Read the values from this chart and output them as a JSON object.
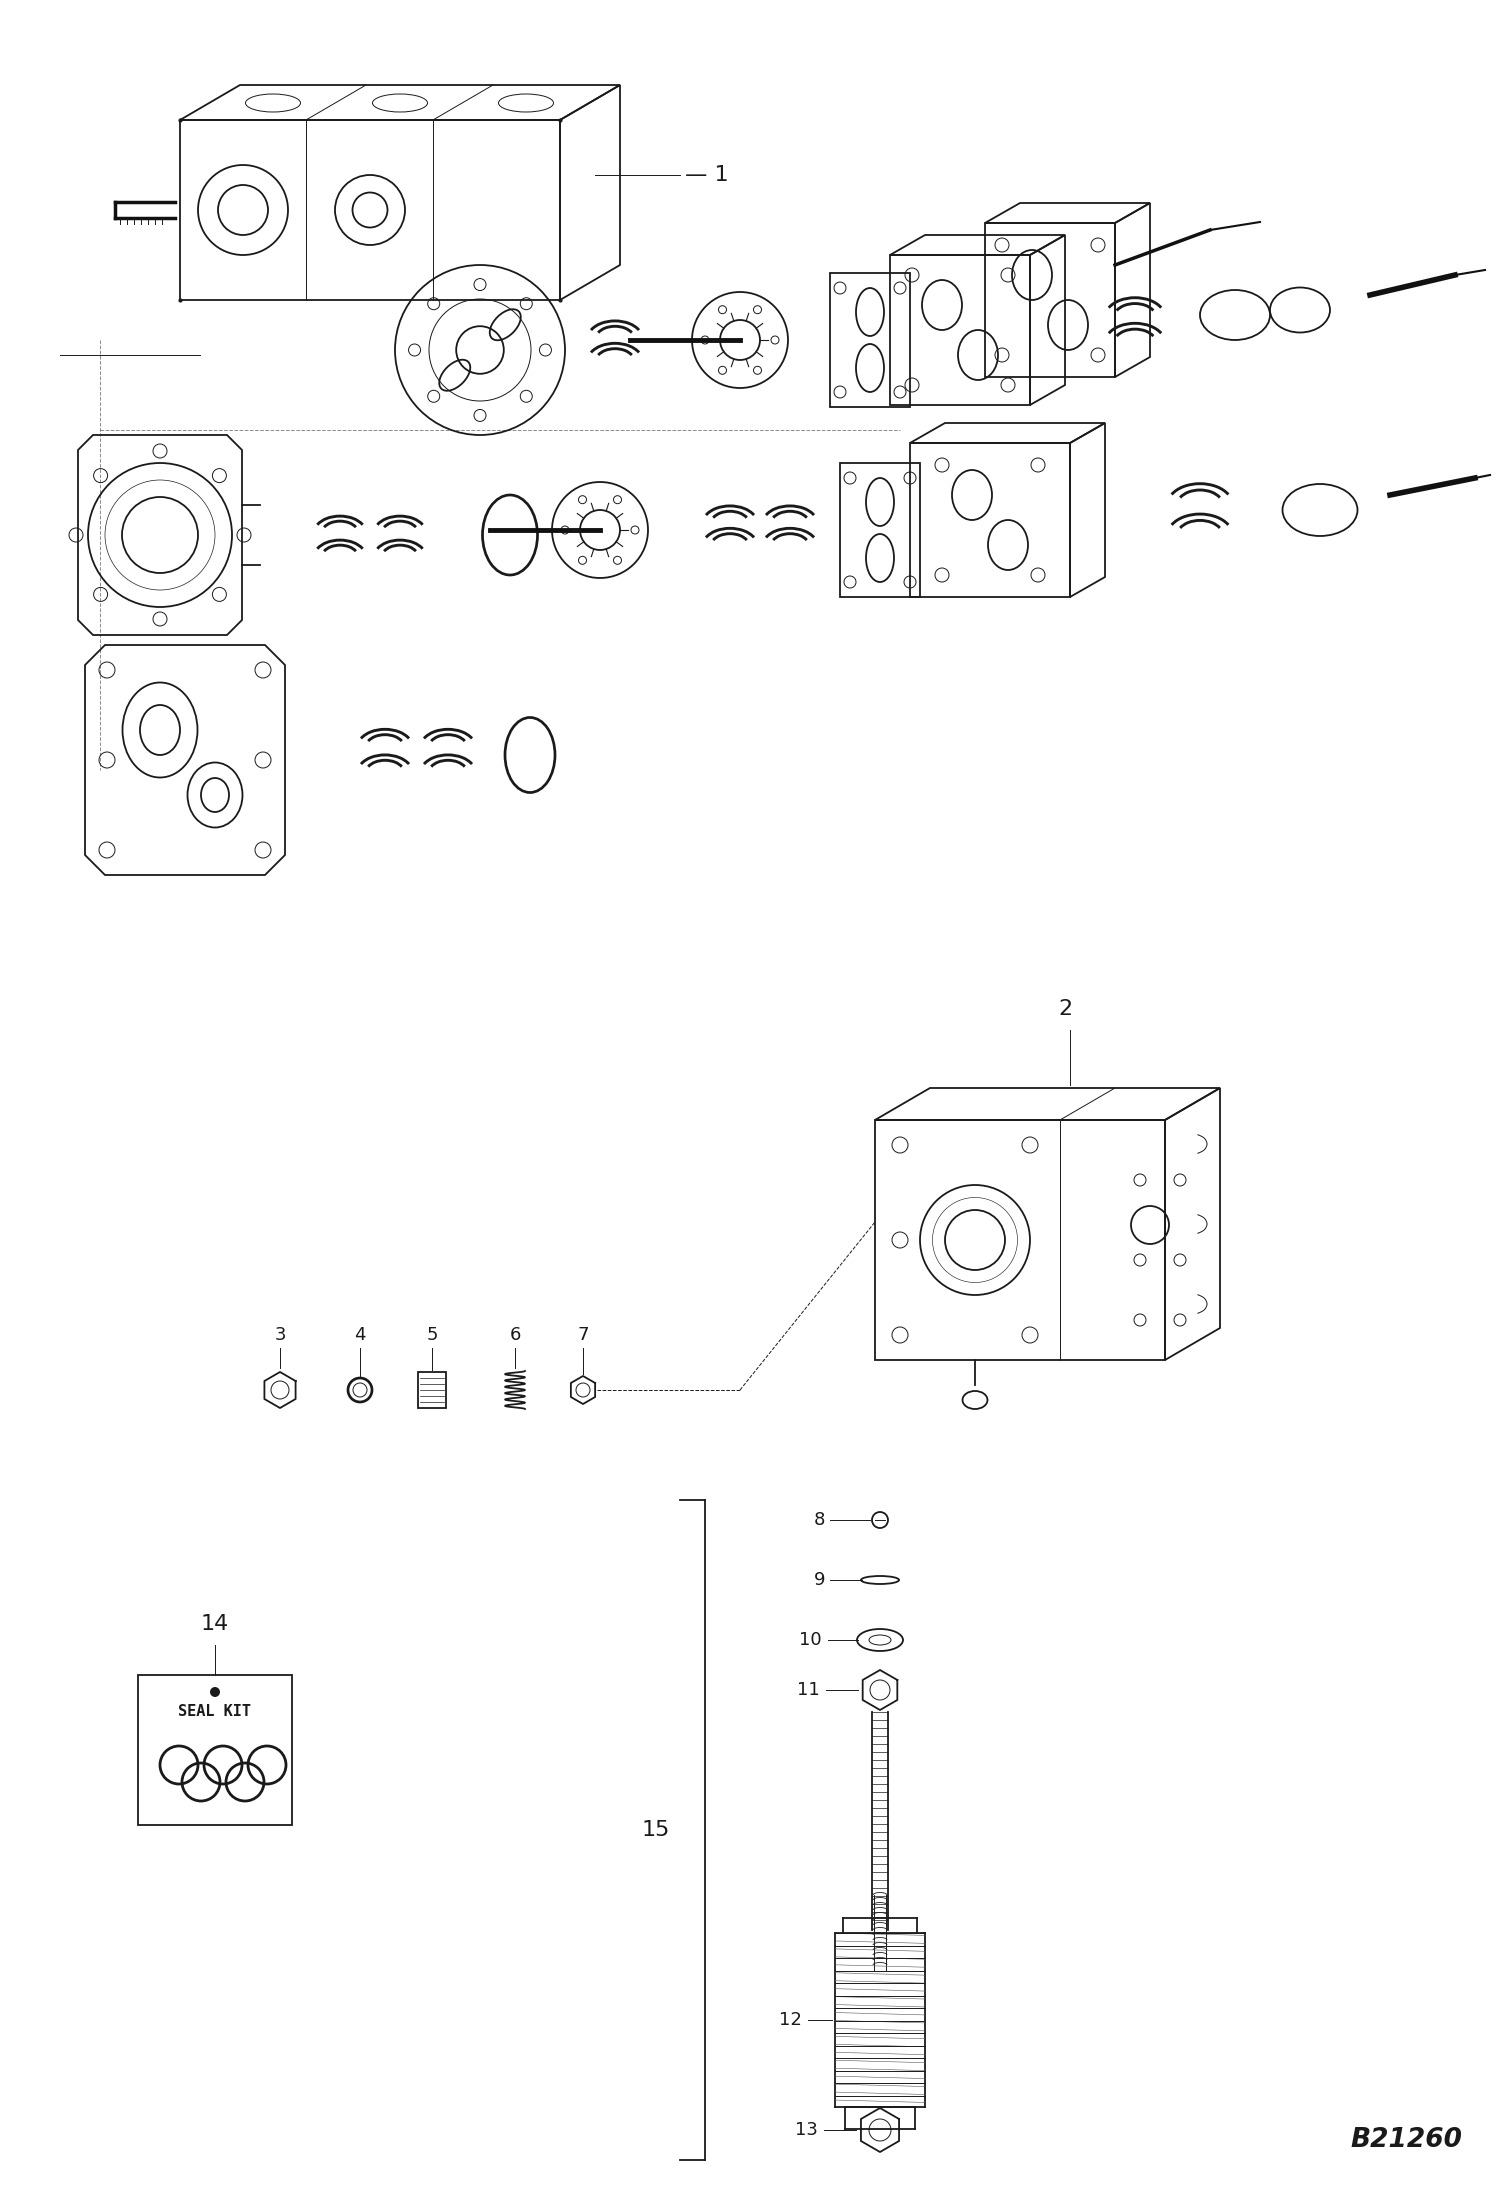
{
  "bg_color": "#ffffff",
  "line_color": "#1a1a1a",
  "watermark": "B21260",
  "seal_kit_label": "SEAL KIT",
  "fig_width": 14.96,
  "fig_height": 21.91,
  "lw_main": 1.3,
  "lw_thin": 0.7,
  "lw_thick": 2.5,
  "label_fontsize": 16,
  "small_fontsize": 13
}
